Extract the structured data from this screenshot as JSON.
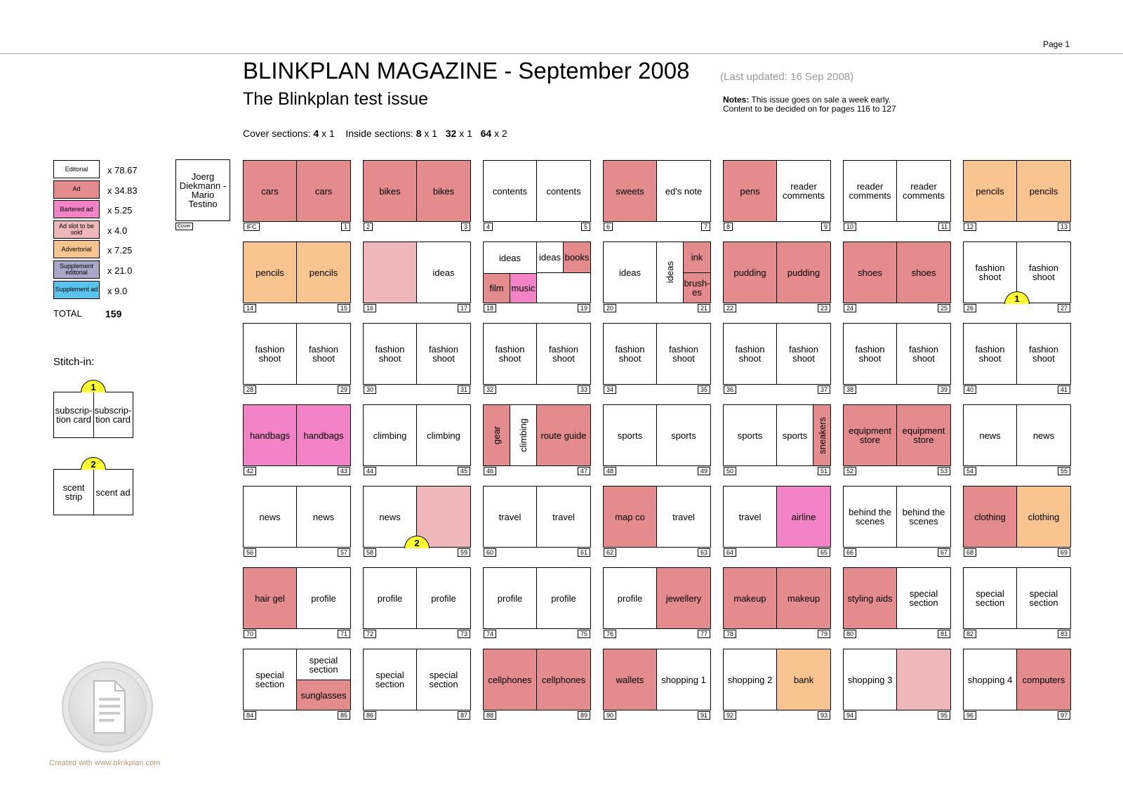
{
  "header": {
    "page": "Page 1",
    "title": "BLINKPLAN MAGAZINE - September 2008",
    "updated": "(Last updated: 16 Sep 2008)",
    "subtitle": "The Blinkplan test issue",
    "notes_label": "Notes:",
    "notes_line1": " This issue goes on sale a week early.",
    "notes_line2": "Content to be decided on for pages 116 to 127",
    "sections_cover_label": "Cover sections: ",
    "sections_cover_num": "4",
    "sections_cover_x": " x 1",
    "sections_inside_label": "Inside sections: ",
    "sections_inside_1_num": "8",
    "sections_inside_1_x": " x 1",
    "sections_inside_2_num": "32",
    "sections_inside_2_x": " x 1",
    "sections_inside_3_num": "64",
    "sections_inside_3_x": " x 2"
  },
  "colors": {
    "ed": "#ffffff",
    "ad": "#e38b8d",
    "bart": "#f283c7",
    "slot": "#efb7b9",
    "advt": "#f8c48f",
    "suped": "#a9a8c9",
    "supad": "#5ac4ef"
  },
  "legend": [
    {
      "label": "Editorial",
      "count": "x 78.67",
      "type": "ed"
    },
    {
      "label": "Ad",
      "count": "x 34.83",
      "type": "ad"
    },
    {
      "label": "Bartered ad",
      "count": "x 5.25",
      "type": "bart"
    },
    {
      "label": "Ad slot to be sold",
      "count": "x 4.0",
      "type": "slot"
    },
    {
      "label": "Advertorial",
      "count": "x 7.25",
      "type": "advt"
    },
    {
      "label": "Supplement editorial",
      "count": "x 21.0",
      "type": "suped"
    },
    {
      "label": "Supplement ad",
      "count": "x 9.0",
      "type": "supad"
    }
  ],
  "total": {
    "label": "TOTAL",
    "value": "159"
  },
  "stitch": {
    "title": "Stitch-in:",
    "items": [
      {
        "badge": "1",
        "left": "subscrip-\ntion card",
        "right": "subscrip-\ntion card"
      },
      {
        "badge": "2",
        "left": "scent\nstrip",
        "right": "scent ad"
      }
    ]
  },
  "cover": {
    "label": "Joerg\nDiekmann -\nMario\nTestino",
    "tag": "Cover"
  },
  "spreads": [
    {
      "l": "cars",
      "lt": "ad",
      "r": "cars",
      "rt": "ad",
      "ln": "IFC",
      "rn": "1"
    },
    {
      "l": "bikes",
      "lt": "ad",
      "r": "bikes",
      "rt": "ad",
      "ln": "2",
      "rn": "3"
    },
    {
      "l": "contents",
      "lt": "ed",
      "r": "contents",
      "rt": "ed",
      "ln": "4",
      "rn": "5"
    },
    {
      "l": "sweets",
      "lt": "ad",
      "r": "ed's note",
      "rt": "ed",
      "ln": "6",
      "rn": "7"
    },
    {
      "l": "pens",
      "lt": "ad",
      "r": "reader\ncomments",
      "rt": "ed",
      "ln": "8",
      "rn": "9"
    },
    {
      "l": "reader\ncomments",
      "lt": "ed",
      "r": "reader\ncomments",
      "rt": "ed",
      "ln": "10",
      "rn": "11"
    },
    {
      "l": "pencils",
      "lt": "advt",
      "r": "pencils",
      "rt": "advt",
      "ln": "12",
      "rn": "13"
    },
    {
      "l": "pencils",
      "lt": "advt",
      "r": "pencils",
      "rt": "advt",
      "ln": "14",
      "rn": "15"
    },
    {
      "l": "",
      "lt": "slot",
      "r": "ideas",
      "rt": "ed",
      "ln": "16",
      "rn": "17"
    },
    {
      "complex": "s18",
      "ln": "18",
      "rn": "19",
      "cells": {
        "ideas": "ideas",
        "ideas2": "ideas",
        "books": "books",
        "film": "film",
        "music": "music"
      }
    },
    {
      "complex": "s20",
      "ln": "20",
      "rn": "21",
      "cells": {
        "ideas": "ideas",
        "ideasv": "ideas",
        "ink": "ink",
        "brushes": "brush-\nes"
      }
    },
    {
      "l": "pudding",
      "lt": "ad",
      "r": "pudding",
      "rt": "ad",
      "ln": "22",
      "rn": "23"
    },
    {
      "l": "shoes",
      "lt": "ad",
      "r": "shoes",
      "rt": "ad",
      "ln": "24",
      "rn": "25"
    },
    {
      "l": "fashion\nshoot",
      "lt": "ed",
      "r": "fashion\nshoot",
      "rt": "ed",
      "ln": "26",
      "rn": "27",
      "badge": "1"
    },
    {
      "l": "fashion\nshoot",
      "lt": "ed",
      "r": "fashion\nshoot",
      "rt": "ed",
      "ln": "28",
      "rn": "29"
    },
    {
      "l": "fashion\nshoot",
      "lt": "ed",
      "r": "fashion\nshoot",
      "rt": "ed",
      "ln": "30",
      "rn": "31"
    },
    {
      "l": "fashion\nshoot",
      "lt": "ed",
      "r": "fashion\nshoot",
      "rt": "ed",
      "ln": "32",
      "rn": "33"
    },
    {
      "l": "fashion\nshoot",
      "lt": "ed",
      "r": "fashion\nshoot",
      "rt": "ed",
      "ln": "34",
      "rn": "35"
    },
    {
      "l": "fashion\nshoot",
      "lt": "ed",
      "r": "fashion\nshoot",
      "rt": "ed",
      "ln": "36",
      "rn": "37"
    },
    {
      "l": "fashion\nshoot",
      "lt": "ed",
      "r": "fashion\nshoot",
      "rt": "ed",
      "ln": "38",
      "rn": "39"
    },
    {
      "l": "fashion\nshoot",
      "lt": "ed",
      "r": "fashion\nshoot",
      "rt": "ed",
      "ln": "40",
      "rn": "41"
    },
    {
      "l": "handbags",
      "lt": "bart",
      "r": "handbags",
      "rt": "bart",
      "ln": "42",
      "rn": "43"
    },
    {
      "l": "climbing",
      "lt": "ed",
      "r": "climbing",
      "rt": "ed",
      "ln": "44",
      "rn": "45"
    },
    {
      "complex": "s46",
      "ln": "46",
      "rn": "47",
      "cells": {
        "gear": "gear",
        "climbing": "climbing",
        "route": "route guide"
      }
    },
    {
      "l": "sports",
      "lt": "ed",
      "r": "sports",
      "rt": "ed",
      "ln": "48",
      "rn": "49"
    },
    {
      "complex": "s50",
      "ln": "50",
      "rn": "51",
      "cells": {
        "sports": "sports",
        "sports2": "sports",
        "sneakers": "sneakers"
      }
    },
    {
      "l": "equipment\nstore",
      "lt": "ad",
      "r": "equipment\nstore",
      "rt": "ad",
      "ln": "52",
      "rn": "53"
    },
    {
      "l": "news",
      "lt": "ed",
      "r": "news",
      "rt": "ed",
      "ln": "54",
      "rn": "55"
    },
    {
      "l": "news",
      "lt": "ed",
      "r": "news",
      "rt": "ed",
      "ln": "56",
      "rn": "57"
    },
    {
      "l": "news",
      "lt": "ed",
      "r": "",
      "rt": "slot",
      "ln": "58",
      "rn": "59",
      "badge": "2"
    },
    {
      "l": "travel",
      "lt": "ed",
      "r": "travel",
      "rt": "ed",
      "ln": "60",
      "rn": "61"
    },
    {
      "l": "map co",
      "lt": "ad",
      "r": "travel",
      "rt": "ed",
      "ln": "62",
      "rn": "63"
    },
    {
      "l": "travel",
      "lt": "ed",
      "r": "airline",
      "rt": "bart",
      "ln": "64",
      "rn": "65"
    },
    {
      "l": "behind the\nscenes",
      "lt": "ed",
      "r": "behind the\nscenes",
      "rt": "ed",
      "ln": "66",
      "rn": "67"
    },
    {
      "l": "clothing",
      "lt": "ad",
      "r": "clothing",
      "rt": "advt",
      "ln": "68",
      "rn": "69"
    },
    {
      "l": "hair gel",
      "lt": "ad",
      "r": "profile",
      "rt": "ed",
      "ln": "70",
      "rn": "71"
    },
    {
      "l": "profile",
      "lt": "ed",
      "r": "profile",
      "rt": "ed",
      "ln": "72",
      "rn": "73"
    },
    {
      "l": "profile",
      "lt": "ed",
      "r": "profile",
      "rt": "ed",
      "ln": "74",
      "rn": "75"
    },
    {
      "l": "profile",
      "lt": "ed",
      "r": "jewellery",
      "rt": "ad",
      "ln": "76",
      "rn": "77"
    },
    {
      "l": "makeup",
      "lt": "ad",
      "r": "makeup",
      "rt": "ad",
      "ln": "78",
      "rn": "79"
    },
    {
      "l": "styling aids",
      "lt": "ad",
      "r": "special\nsection",
      "rt": "ed",
      "ln": "80",
      "rn": "81"
    },
    {
      "l": "special\nsection",
      "lt": "ed",
      "r": "special\nsection",
      "rt": "ed",
      "ln": "82",
      "rn": "83"
    },
    {
      "complex": "s84",
      "ln": "84",
      "rn": "85",
      "cells": {
        "special": "special\nsection",
        "special2": "special\nsection",
        "sunglasses": "sunglasses"
      }
    },
    {
      "l": "special\nsection",
      "lt": "ed",
      "r": "special\nsection",
      "rt": "ed",
      "ln": "86",
      "rn": "87"
    },
    {
      "l": "cellphones",
      "lt": "ad",
      "r": "cellphones",
      "rt": "ad",
      "ln": "88",
      "rn": "89"
    },
    {
      "l": "wallets",
      "lt": "ad",
      "r": "shopping 1",
      "rt": "ed",
      "ln": "90",
      "rn": "91"
    },
    {
      "l": "shopping 2",
      "lt": "ed",
      "r": "bank",
      "rt": "advt",
      "ln": "92",
      "rn": "93"
    },
    {
      "l": "shopping 3",
      "lt": "ed",
      "r": "",
      "rt": "slot",
      "ln": "94",
      "rn": "95"
    },
    {
      "l": "shopping 4",
      "lt": "ed",
      "r": "computers",
      "rt": "ad",
      "ln": "96",
      "rn": "97"
    }
  ],
  "footer": {
    "created": "Created with www.blinkplan.com"
  }
}
